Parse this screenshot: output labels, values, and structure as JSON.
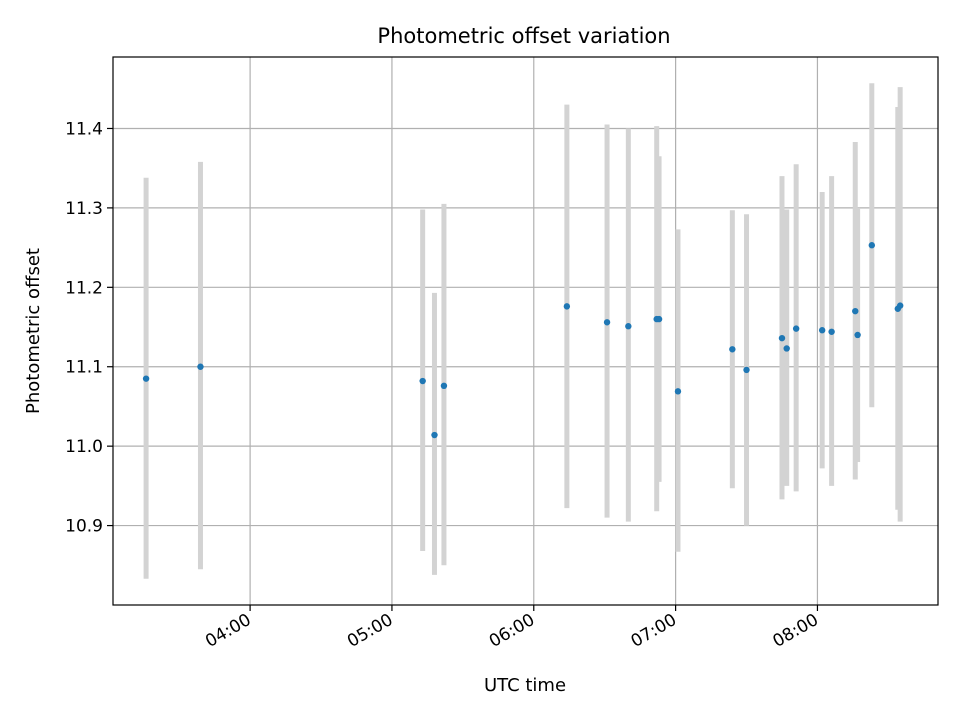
{
  "chart_data": {
    "type": "scatter",
    "title": "Photometric offset variation",
    "xlabel": "UTC time",
    "ylabel": "Photometric offset",
    "x_unit": "UTC hours",
    "xlim": [
      "03:02",
      "08:51"
    ],
    "ylim": [
      10.8,
      11.49
    ],
    "x_ticks": [
      "04:00",
      "05:00",
      "06:00",
      "07:00",
      "08:00"
    ],
    "y_ticks": [
      "10.9",
      "11.0",
      "11.1",
      "11.2",
      "11.3",
      "11.4"
    ],
    "grid": true,
    "marker_color": "#1f77b4",
    "errorbar_color": "#d3d3d3",
    "points": [
      {
        "x": "03:16",
        "y": 11.085,
        "ylow": 10.833,
        "yhigh": 11.338
      },
      {
        "x": "03:39",
        "y": 11.1,
        "ylow": 10.845,
        "yhigh": 11.358
      },
      {
        "x": "05:13",
        "y": 11.082,
        "ylow": 10.868,
        "yhigh": 11.298
      },
      {
        "x": "05:18",
        "y": 11.014,
        "ylow": 10.838,
        "yhigh": 11.193
      },
      {
        "x": "05:22",
        "y": 11.076,
        "ylow": 10.85,
        "yhigh": 11.305
      },
      {
        "x": "06:14",
        "y": 11.176,
        "ylow": 10.922,
        "yhigh": 11.43
      },
      {
        "x": "06:31",
        "y": 11.156,
        "ylow": 10.91,
        "yhigh": 11.405
      },
      {
        "x": "06:40",
        "y": 11.151,
        "ylow": 10.905,
        "yhigh": 11.4
      },
      {
        "x": "06:52",
        "y": 11.16,
        "ylow": 10.918,
        "yhigh": 11.403
      },
      {
        "x": "06:53",
        "y": 11.16,
        "ylow": 10.955,
        "yhigh": 11.365
      },
      {
        "x": "07:01",
        "y": 11.069,
        "ylow": 10.867,
        "yhigh": 11.273
      },
      {
        "x": "07:24",
        "y": 11.122,
        "ylow": 10.947,
        "yhigh": 11.297
      },
      {
        "x": "07:30",
        "y": 11.096,
        "ylow": 10.9,
        "yhigh": 11.292
      },
      {
        "x": "07:45",
        "y": 11.136,
        "ylow": 10.933,
        "yhigh": 11.34
      },
      {
        "x": "07:47",
        "y": 11.123,
        "ylow": 10.95,
        "yhigh": 11.298
      },
      {
        "x": "07:51",
        "y": 11.148,
        "ylow": 10.943,
        "yhigh": 11.355
      },
      {
        "x": "08:02",
        "y": 11.146,
        "ylow": 10.972,
        "yhigh": 11.32
      },
      {
        "x": "08:06",
        "y": 11.144,
        "ylow": 10.95,
        "yhigh": 11.34
      },
      {
        "x": "08:16",
        "y": 11.17,
        "ylow": 10.958,
        "yhigh": 11.383
      },
      {
        "x": "08:17",
        "y": 11.14,
        "ylow": 10.98,
        "yhigh": 11.3
      },
      {
        "x": "08:23",
        "y": 11.253,
        "ylow": 11.049,
        "yhigh": 11.457
      },
      {
        "x": "08:34",
        "y": 11.173,
        "ylow": 10.92,
        "yhigh": 11.427
      },
      {
        "x": "08:35",
        "y": 11.177,
        "ylow": 10.905,
        "yhigh": 11.452
      }
    ]
  }
}
